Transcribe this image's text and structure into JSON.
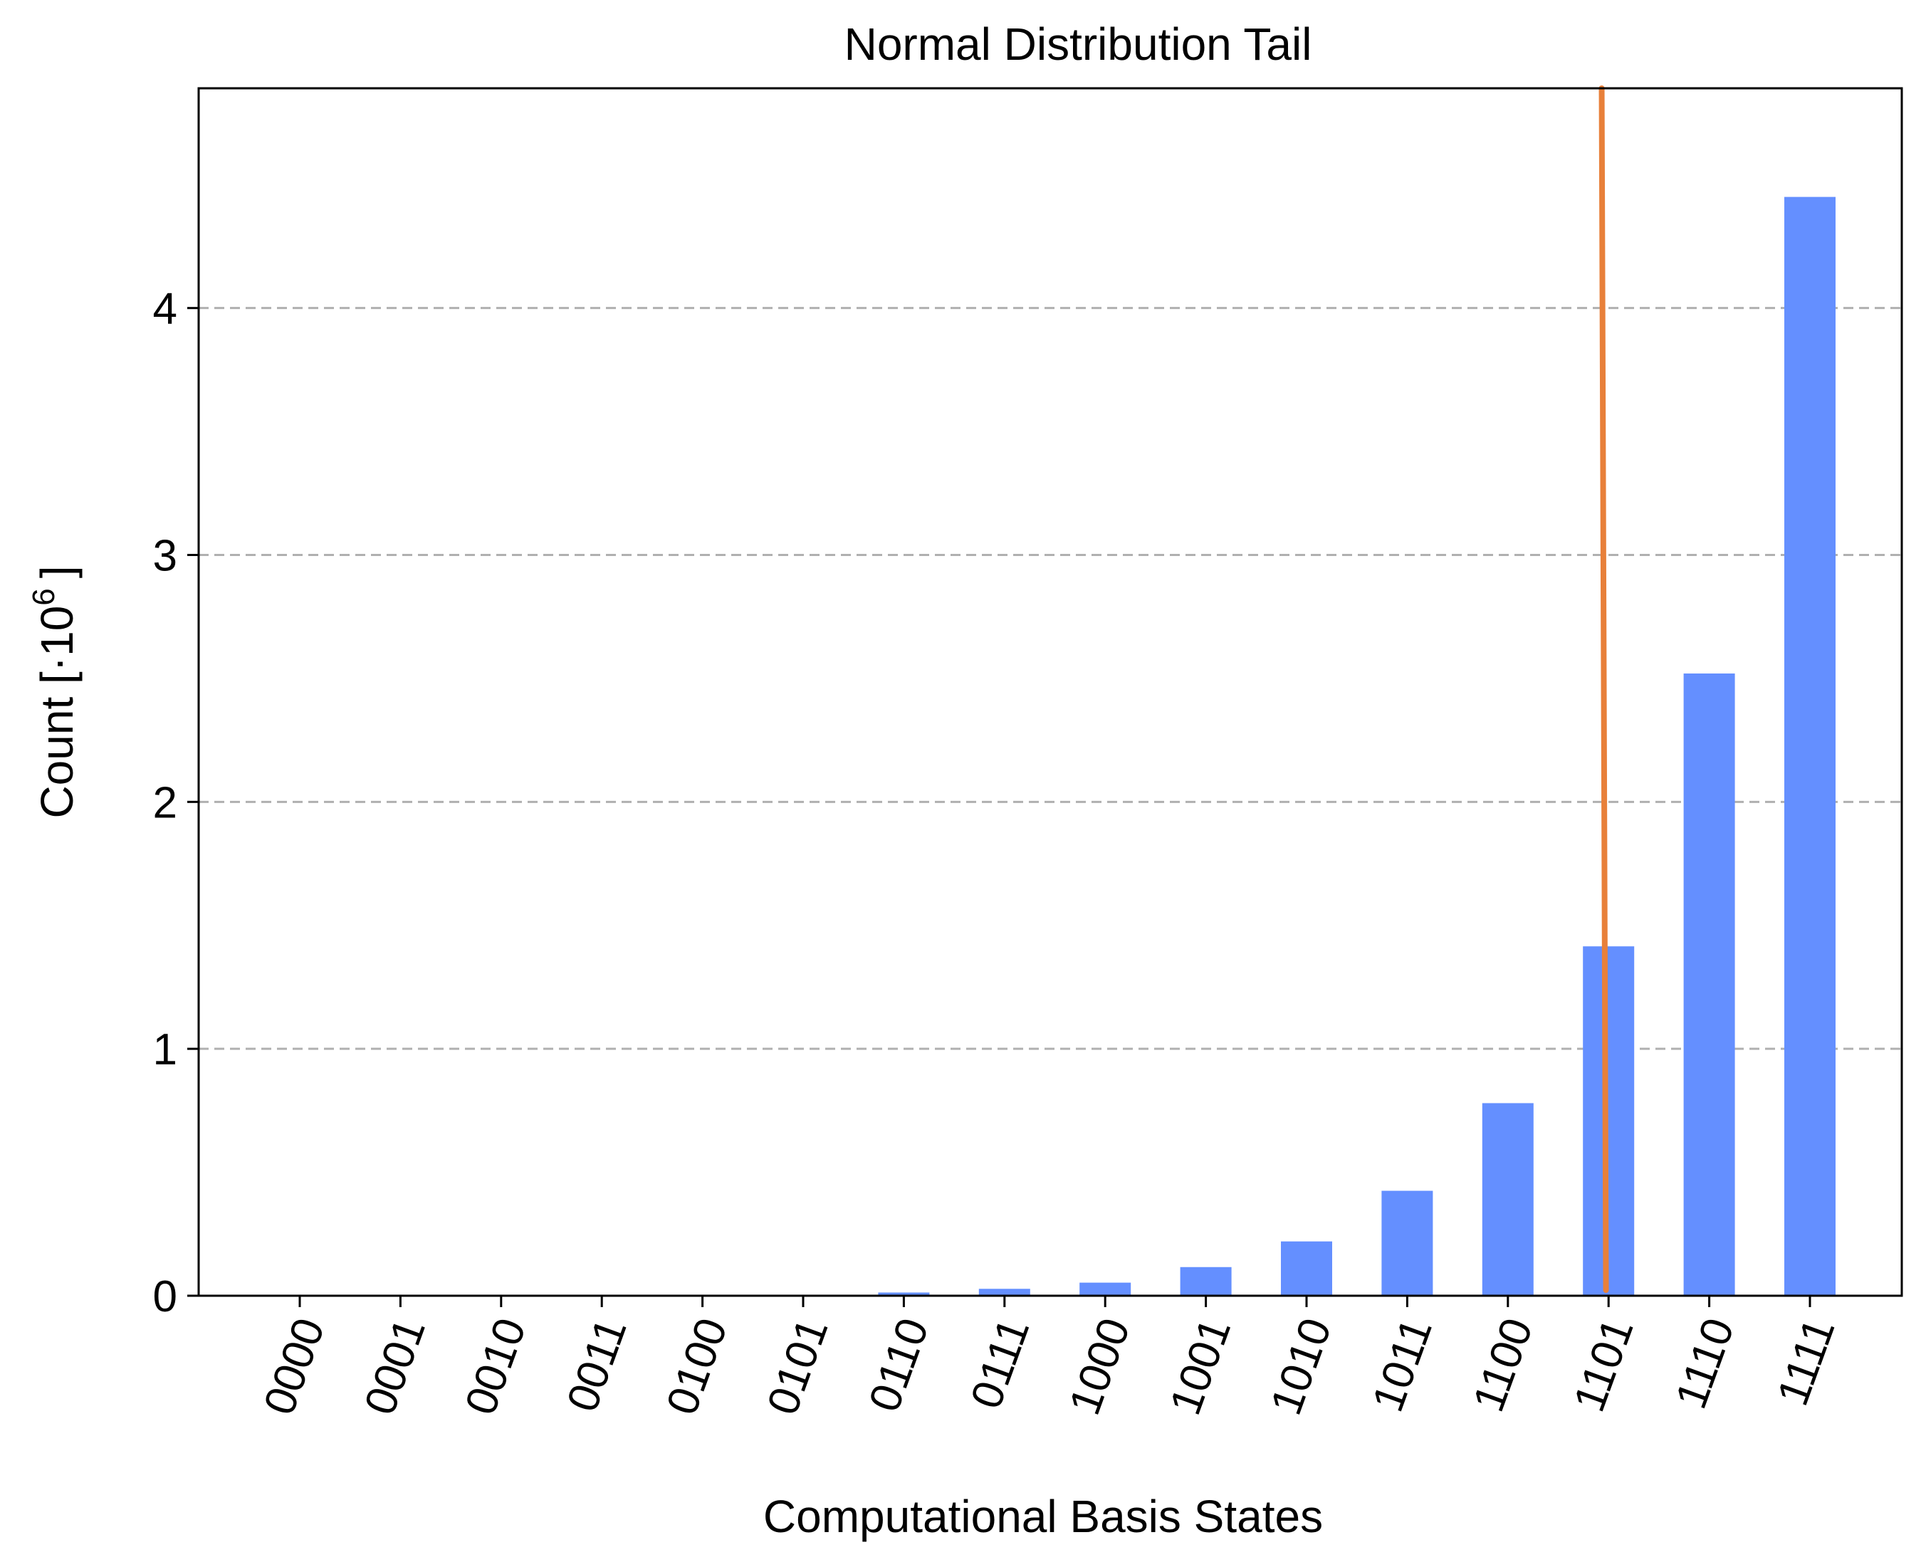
{
  "chart_data": {
    "type": "bar",
    "title": "Normal Distribution Tail",
    "xlabel": "Computational Basis States",
    "ylabel_prefix": "Count [·10",
    "ylabel_exponent": "6",
    "ylabel_suffix": "]",
    "ylabel": "Count [·10^6]",
    "categories": [
      "0000",
      "0001",
      "0010",
      "0011",
      "0100",
      "0101",
      "0110",
      "0111",
      "1000",
      "1001",
      "1010",
      "1011",
      "1100",
      "1101",
      "1110",
      "1111"
    ],
    "values": [
      0.0,
      0.0,
      0.0,
      0.0,
      0.001,
      0.003,
      0.013,
      0.028,
      0.053,
      0.116,
      0.22,
      0.425,
      0.78,
      1.415,
      2.52,
      4.45
    ],
    "ylim": [
      0,
      4.89
    ],
    "yticks": [
      0,
      1,
      2,
      3,
      4
    ],
    "ytick_labels": [
      "0",
      "1",
      "2",
      "3",
      "4"
    ],
    "grid": "horizontal dashed",
    "bar_color": "#648fff",
    "threshold_line": {
      "x_category_position": 12.96,
      "color": "#e8803a",
      "style": "vertical line"
    },
    "grid_color": "#b0b0b0",
    "axis_color": "#000000"
  }
}
